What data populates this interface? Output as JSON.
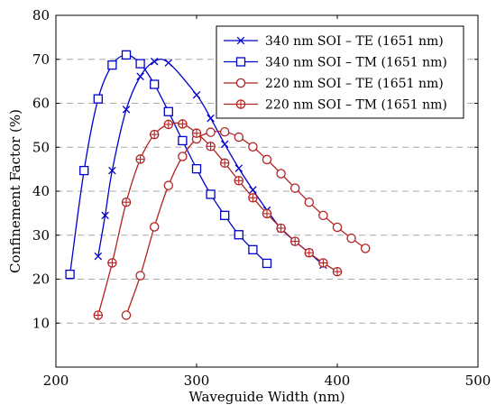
{
  "chart_data": {
    "type": "line",
    "title": "",
    "xlabel": "Waveguide Width (nm)",
    "ylabel": "Confinement Factor (%)",
    "xlim": [
      200,
      500
    ],
    "ylim": [
      0,
      80
    ],
    "xticks": [
      200,
      300,
      400,
      500
    ],
    "yticks": [
      10,
      20,
      30,
      40,
      50,
      60,
      70,
      80
    ],
    "grid": "horizontal-dashed",
    "legend_position": "top-right",
    "series": [
      {
        "name": "340 nm SOI – TE (1651 nm)",
        "color": "#0000cc",
        "marker": "x",
        "x": [
          230,
          235,
          240,
          250,
          260,
          270,
          280,
          300,
          310,
          320,
          330,
          340,
          350,
          360,
          370,
          380,
          390
        ],
        "y": [
          25.2,
          34.5,
          44.7,
          58.6,
          66.1,
          69.5,
          69.2,
          61.9,
          56.6,
          50.7,
          45.2,
          40.3,
          35.7,
          31.5,
          28.6,
          26.0,
          23.2
        ]
      },
      {
        "name": "340 nm SOI – TM (1651 nm)",
        "color": "#0000cc",
        "marker": "square",
        "x": [
          210,
          220,
          230,
          240,
          250,
          260,
          270,
          280,
          290,
          300,
          310,
          320,
          330,
          340,
          350
        ],
        "y": [
          21.1,
          44.7,
          61.0,
          68.7,
          71.0,
          69.0,
          64.3,
          58.1,
          51.5,
          45.1,
          39.3,
          34.5,
          30.1,
          26.7,
          23.6
        ]
      },
      {
        "name": "220 nm SOI – TE (1651 nm)",
        "color": "#b22222",
        "marker": "circle",
        "x": [
          250,
          260,
          270,
          280,
          290,
          300,
          310,
          320,
          330,
          340,
          350,
          360,
          370,
          380,
          390,
          400,
          410,
          420
        ],
        "y": [
          11.8,
          20.8,
          31.9,
          41.3,
          47.9,
          51.9,
          53.4,
          53.5,
          52.3,
          50.1,
          47.2,
          44.0,
          40.7,
          37.5,
          34.5,
          31.8,
          29.3,
          27.0
        ]
      },
      {
        "name": "220 nm SOI – TM (1651 nm)",
        "color": "#b22222",
        "marker": "circle-plus",
        "x": [
          230,
          240,
          250,
          260,
          270,
          280,
          290,
          300,
          310,
          320,
          330,
          340,
          350,
          360,
          370,
          380,
          390,
          400
        ],
        "y": [
          11.8,
          23.7,
          37.5,
          47.3,
          52.9,
          55.2,
          55.3,
          53.2,
          50.2,
          46.4,
          42.4,
          38.5,
          34.9,
          31.6,
          28.6,
          26.0,
          23.7,
          21.7
        ]
      }
    ]
  }
}
